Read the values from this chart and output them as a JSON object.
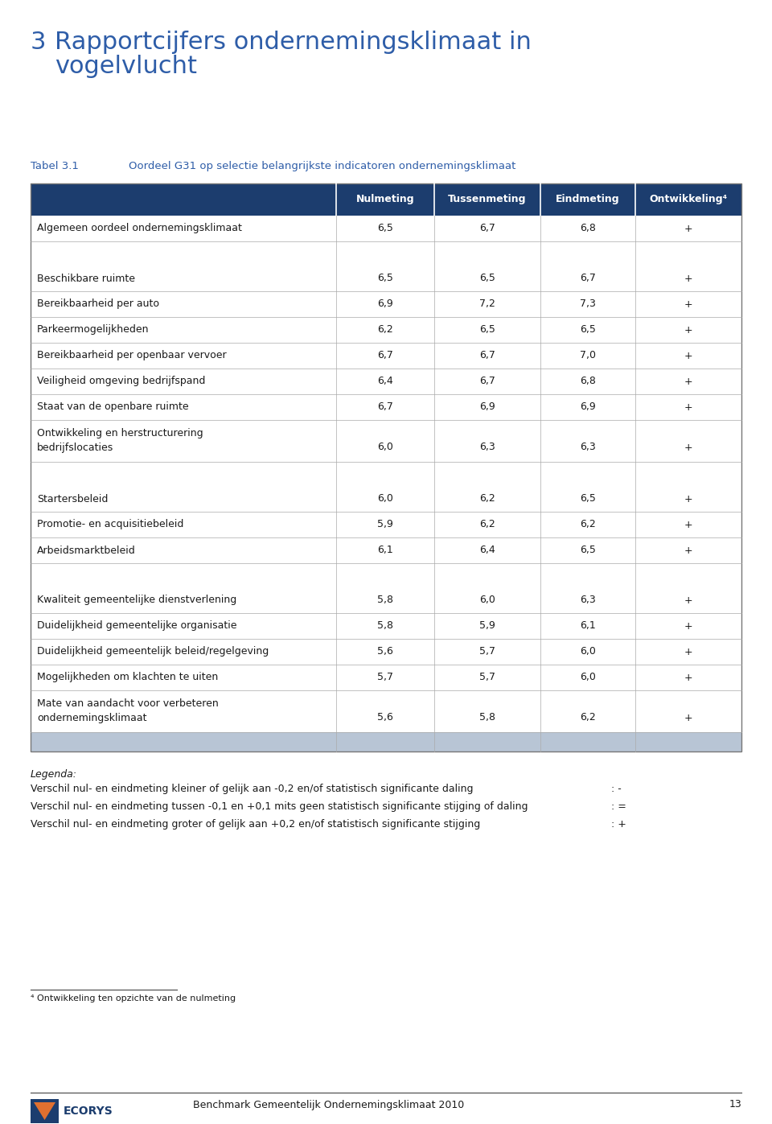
{
  "page_title_num": "3",
  "page_title_line1": "Rapportcijfers ondernemingsklimaat in",
  "page_title_line2": "vogelvlucht",
  "table_label": "Tabel 3.1",
  "table_caption": "Oordeel G31 op selectie belangrijkste indicatoren ondernemingsklimaat",
  "header_bg": "#1c3d6e",
  "col_headers": [
    "Nulmeting",
    "Tussenmeting",
    "Eindmeting",
    "Ontwikkeling⁴"
  ],
  "rows": [
    {
      "label": "Algemeen oordeel ondernemingsklimaat",
      "nul": "6,5",
      "tussen": "6,7",
      "eind": "6,8",
      "ont": "+",
      "type": "normal"
    },
    {
      "label": "",
      "nul": "",
      "tussen": "",
      "eind": "",
      "ont": "",
      "type": "gap_large"
    },
    {
      "label": "Beschikbare ruimte",
      "nul": "6,5",
      "tussen": "6,5",
      "eind": "6,7",
      "ont": "+",
      "type": "normal"
    },
    {
      "label": "Bereikbaarheid per auto",
      "nul": "6,9",
      "tussen": "7,2",
      "eind": "7,3",
      "ont": "+",
      "type": "normal"
    },
    {
      "label": "Parkeermogelijkheden",
      "nul": "6,2",
      "tussen": "6,5",
      "eind": "6,5",
      "ont": "+",
      "type": "normal"
    },
    {
      "label": "Bereikbaarheid per openbaar vervoer",
      "nul": "6,7",
      "tussen": "6,7",
      "eind": "7,0",
      "ont": "+",
      "type": "normal"
    },
    {
      "label": "Veiligheid omgeving bedrijfspand",
      "nul": "6,4",
      "tussen": "6,7",
      "eind": "6,8",
      "ont": "+",
      "type": "normal"
    },
    {
      "label": "Staat van de openbare ruimte",
      "nul": "6,7",
      "tussen": "6,9",
      "eind": "6,9",
      "ont": "+",
      "type": "normal"
    },
    {
      "label": "Ontwikkeling en herstructurering\nbedrijfslocaties",
      "nul": "6,0",
      "tussen": "6,3",
      "eind": "6,3",
      "ont": "+",
      "type": "two_line"
    },
    {
      "label": "",
      "nul": "",
      "tussen": "",
      "eind": "",
      "ont": "",
      "type": "gap_large"
    },
    {
      "label": "Startersbeleid",
      "nul": "6,0",
      "tussen": "6,2",
      "eind": "6,5",
      "ont": "+",
      "type": "normal"
    },
    {
      "label": "Promotie- en acquisitiebeleid",
      "nul": "5,9",
      "tussen": "6,2",
      "eind": "6,2",
      "ont": "+",
      "type": "normal"
    },
    {
      "label": "Arbeidsmarktbeleid",
      "nul": "6,1",
      "tussen": "6,4",
      "eind": "6,5",
      "ont": "+",
      "type": "normal"
    },
    {
      "label": "",
      "nul": "",
      "tussen": "",
      "eind": "",
      "ont": "",
      "type": "gap_large"
    },
    {
      "label": "Kwaliteit gemeentelijke dienstverlening",
      "nul": "5,8",
      "tussen": "6,0",
      "eind": "6,3",
      "ont": "+",
      "type": "normal"
    },
    {
      "label": "Duidelijkheid gemeentelijke organisatie",
      "nul": "5,8",
      "tussen": "5,9",
      "eind": "6,1",
      "ont": "+",
      "type": "normal"
    },
    {
      "label": "Duidelijkheid gemeentelijk beleid/regelgeving",
      "nul": "5,6",
      "tussen": "5,7",
      "eind": "6,0",
      "ont": "+",
      "type": "normal"
    },
    {
      "label": "Mogelijkheden om klachten te uiten",
      "nul": "5,7",
      "tussen": "5,7",
      "eind": "6,0",
      "ont": "+",
      "type": "normal"
    },
    {
      "label": "Mate van aandacht voor verbeteren\nondernemingsklimaat",
      "nul": "5,6",
      "tussen": "5,8",
      "eind": "6,2",
      "ont": "+",
      "type": "two_line"
    }
  ],
  "footer_row_bg": "#b8c5d5",
  "legend_title": "Legenda:",
  "legend_lines": [
    [
      "Verschil nul- en eindmeting kleiner of gelijk aan -0,2 en/of statistisch significante daling",
      ": -"
    ],
    [
      "Verschil nul- en eindmeting tussen -0,1 en +0,1 mits geen statistisch significante stijging of daling",
      ": ="
    ],
    [
      "Verschil nul- en eindmeting groter of gelijk aan +0,2 en/of statistisch significante stijging",
      ": +"
    ]
  ],
  "footnote": "⁴ Ontwikkeling ten opzichte van de nulmeting",
  "footer_text": "Benchmark Gemeentelijk Ondernemingsklimaat 2010",
  "footer_page": "13",
  "blue_color": "#2e5da8",
  "dark_blue": "#1c3d6e",
  "text_color": "#1a1a1a",
  "border_color": "#777777",
  "divider_color": "#aaaaaa",
  "orange_color": "#e07030"
}
